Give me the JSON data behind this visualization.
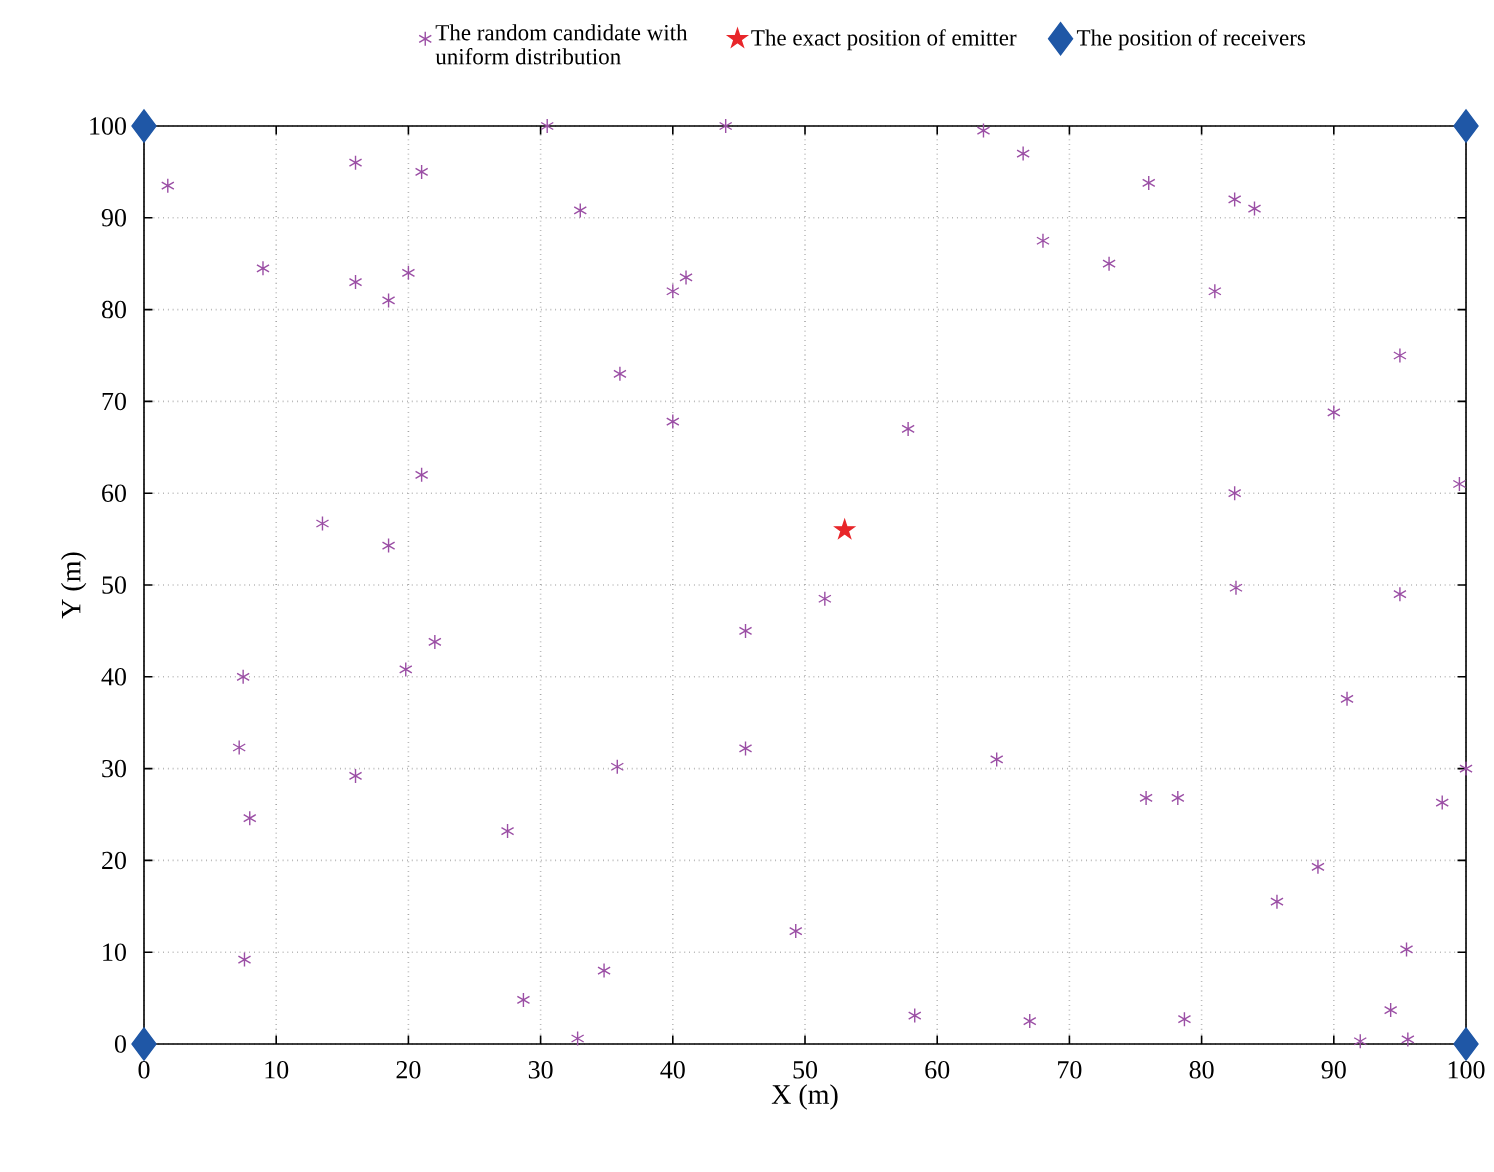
{
  "chart_data": {
    "type": "scatter",
    "xlabel": "X (m)",
    "ylabel": "Y (m)",
    "xlim": [
      0,
      100
    ],
    "ylim": [
      0,
      100
    ],
    "xticks": [
      0,
      10,
      20,
      30,
      40,
      50,
      60,
      70,
      80,
      90,
      100
    ],
    "yticks": [
      0,
      10,
      20,
      30,
      40,
      50,
      60,
      70,
      80,
      90,
      100
    ],
    "grid": true,
    "legend": "top",
    "series": [
      {
        "name": "The random candidate with uniform distribution",
        "color": "#9b4fa5",
        "marker": "cross",
        "x": [
          1.8,
          16,
          21,
          30.5,
          44,
          63.5,
          66.5,
          33,
          76,
          82.5,
          84,
          68,
          9,
          16,
          20,
          18.5,
          41,
          40,
          73,
          81,
          36,
          95,
          40,
          57.8,
          90,
          21,
          99.5,
          13.5,
          18.5,
          82.5,
          51.5,
          82.6,
          95,
          45.5,
          22,
          19.8,
          7.5,
          91,
          7.2,
          45.5,
          16,
          35.8,
          64.5,
          8,
          27.5,
          75.8,
          78.2,
          100,
          98.2,
          88.8,
          85.7,
          49.3,
          95.5,
          7.6,
          34.8,
          28.7,
          32.8,
          58.3,
          67,
          78.7,
          94.3,
          95.6,
          92
        ],
        "values": [
          93.5,
          96,
          95,
          100,
          100,
          99.5,
          97,
          90.8,
          93.8,
          92,
          91,
          87.5,
          84.5,
          83,
          84,
          81,
          83.5,
          82,
          85,
          82,
          73,
          75,
          67.8,
          67,
          68.8,
          62,
          61,
          56.7,
          54.3,
          60,
          48.5,
          49.7,
          49,
          45,
          43.8,
          40.8,
          40,
          37.6,
          32.3,
          32.2,
          29.2,
          30.2,
          31,
          24.6,
          23.2,
          26.8,
          26.8,
          30,
          26.3,
          19.3,
          15.5,
          12.3,
          10.3,
          9.2,
          8,
          4.8,
          0.6,
          3.1,
          2.5,
          2.7,
          3.7,
          0.5,
          0.3
        ]
      },
      {
        "name": "The exact  position of emitter",
        "color": "#e8262a",
        "marker": "star",
        "x": [
          53
        ],
        "values": [
          56
        ]
      },
      {
        "name": "The position of receivers",
        "color": "#1f57a6",
        "marker": "diamond",
        "x": [
          0,
          100,
          0,
          100
        ],
        "values": [
          100,
          100,
          0,
          0
        ]
      }
    ]
  }
}
